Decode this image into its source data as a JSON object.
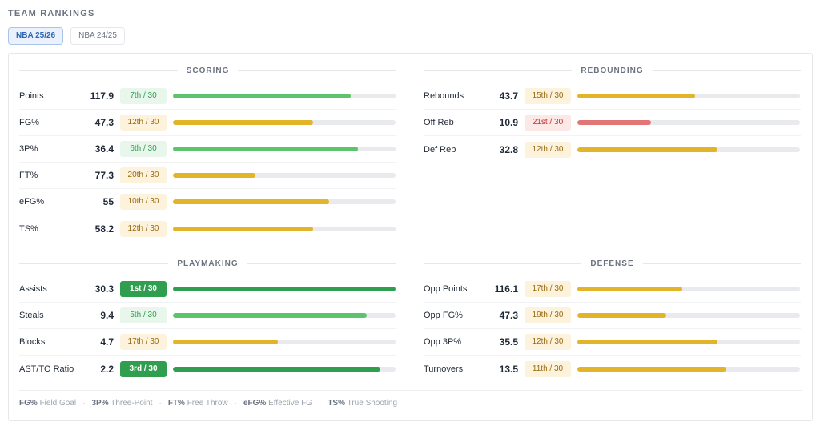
{
  "header": {
    "title": "TEAM RANKINGS"
  },
  "seasons": [
    {
      "label": "NBA 25/26",
      "active": true
    },
    {
      "label": "NBA 24/25",
      "active": false
    }
  ],
  "colors": {
    "top": "#2f9e4f",
    "good": "#5cc46a",
    "mid": "#e2b42a",
    "low": "#e27575",
    "accent": "#2e66b5"
  },
  "sections": {
    "scoring": {
      "title": "SCORING",
      "rows": [
        {
          "label": "Points",
          "value": "117.9",
          "rank": "7th / 30",
          "tier": "good",
          "fill": 0.8
        },
        {
          "label": "FG%",
          "value": "47.3",
          "rank": "12th / 30",
          "tier": "mid",
          "fill": 0.63
        },
        {
          "label": "3P%",
          "value": "36.4",
          "rank": "6th / 30",
          "tier": "good",
          "fill": 0.83
        },
        {
          "label": "FT%",
          "value": "77.3",
          "rank": "20th / 30",
          "tier": "mid",
          "fill": 0.37
        },
        {
          "label": "eFG%",
          "value": "55",
          "rank": "10th / 30",
          "tier": "mid",
          "fill": 0.7
        },
        {
          "label": "TS%",
          "value": "58.2",
          "rank": "12th / 30",
          "tier": "mid",
          "fill": 0.63
        }
      ]
    },
    "rebounding": {
      "title": "REBOUNDING",
      "rows": [
        {
          "label": "Rebounds",
          "value": "43.7",
          "rank": "15th / 30",
          "tier": "mid",
          "fill": 0.53
        },
        {
          "label": "Off Reb",
          "value": "10.9",
          "rank": "21st / 30",
          "tier": "low",
          "fill": 0.33
        },
        {
          "label": "Def Reb",
          "value": "32.8",
          "rank": "12th / 30",
          "tier": "mid",
          "fill": 0.63
        }
      ]
    },
    "playmaking": {
      "title": "PLAYMAKING",
      "rows": [
        {
          "label": "Assists",
          "value": "30.3",
          "rank": "1st / 30",
          "tier": "top",
          "fill": 1.0
        },
        {
          "label": "Steals",
          "value": "9.4",
          "rank": "5th / 30",
          "tier": "good",
          "fill": 0.87
        },
        {
          "label": "Blocks",
          "value": "4.7",
          "rank": "17th / 30",
          "tier": "mid",
          "fill": 0.47
        },
        {
          "label": "AST/TO Ratio",
          "value": "2.2",
          "rank": "3rd / 30",
          "tier": "top",
          "fill": 0.93
        }
      ]
    },
    "defense": {
      "title": "DEFENSE",
      "rows": [
        {
          "label": "Opp Points",
          "value": "116.1",
          "rank": "17th / 30",
          "tier": "mid",
          "fill": 0.47
        },
        {
          "label": "Opp FG%",
          "value": "47.3",
          "rank": "19th / 30",
          "tier": "mid",
          "fill": 0.4
        },
        {
          "label": "Opp 3P%",
          "value": "35.5",
          "rank": "12th / 30",
          "tier": "mid",
          "fill": 0.63
        },
        {
          "label": "Turnovers",
          "value": "13.5",
          "rank": "11th / 30",
          "tier": "mid",
          "fill": 0.67
        }
      ]
    }
  },
  "legend": [
    {
      "abbr": "FG%",
      "text": "Field Goal"
    },
    {
      "abbr": "3P%",
      "text": "Three-Point"
    },
    {
      "abbr": "FT%",
      "text": "Free Throw"
    },
    {
      "abbr": "eFG%",
      "text": "Effective FG"
    },
    {
      "abbr": "TS%",
      "text": "True Shooting"
    }
  ],
  "legend_separator": "·"
}
